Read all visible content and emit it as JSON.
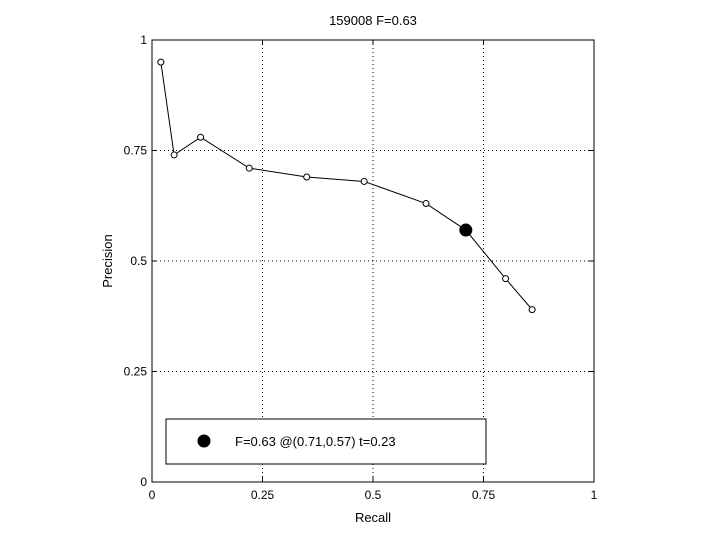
{
  "chart_data": {
    "type": "line",
    "title": "159008 F=0.63",
    "xlabel": "Recall",
    "ylabel": "Precision",
    "xlim": [
      0,
      1
    ],
    "ylim": [
      0,
      1
    ],
    "xticks": [
      0,
      0.25,
      0.5,
      0.75,
      1
    ],
    "yticks": [
      0,
      0.25,
      0.5,
      0.75,
      1
    ],
    "xtick_labels": [
      "0",
      "0.25",
      "0.5",
      "0.75",
      "1"
    ],
    "ytick_labels": [
      "0",
      "0.25",
      "0.5",
      "0.75",
      "1"
    ],
    "grid": true,
    "legend_position": "bottom-left",
    "series": [
      {
        "x": [
          0.02,
          0.05,
          0.11,
          0.22,
          0.35,
          0.48,
          0.62,
          0.71,
          0.8,
          0.86
        ],
        "y": [
          0.95,
          0.74,
          0.78,
          0.71,
          0.69,
          0.68,
          0.63,
          0.57,
          0.46,
          0.39
        ]
      }
    ],
    "highlight": {
      "x": 0.71,
      "y": 0.57,
      "legend_label": "F=0.63 @(0.71,0.57) t=0.23"
    }
  }
}
